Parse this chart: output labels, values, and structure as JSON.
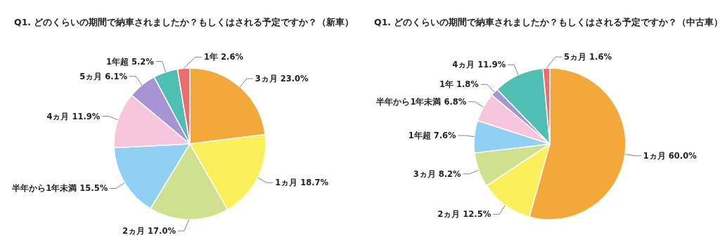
{
  "chart_data": [
    {
      "type": "pie",
      "title": "Q1. どのくらいの期間で納車されましたか？もしくはされる予定ですか？（新車）",
      "categories": [
        "3ヵ月",
        "1ヵ月",
        "2ヵ月",
        "半年から1年未満",
        "4ヵ月",
        "5ヵ月",
        "1年超",
        "1年"
      ],
      "values": [
        23.0,
        18.7,
        17.0,
        15.5,
        11.9,
        6.1,
        5.2,
        2.6
      ],
      "value_labels": [
        "23.0%",
        "18.7%",
        "17.0%",
        "15.5%",
        "11.9%",
        "6.1%",
        "5.2%",
        "2.6%"
      ],
      "colors": [
        "#f3a93a",
        "#fbef5a",
        "#cfe08f",
        "#8fd0f3",
        "#f7c6dc",
        "#a894d4",
        "#4fbfb3",
        "#ec6d6d"
      ]
    },
    {
      "type": "pie",
      "title": "Q1. どのくらいの期間で納車されましたか？もしくはされる予定ですか？（中古車）",
      "categories": [
        "1ヵ月",
        "2ヵ月",
        "3ヵ月",
        "1年超",
        "半年から1年未満",
        "1年",
        "4ヵ月",
        "5ヵ月"
      ],
      "values": [
        60.0,
        12.5,
        8.2,
        7.6,
        6.8,
        1.8,
        11.9,
        1.6
      ],
      "value_labels": [
        "60.0%",
        "12.5%",
        "8.2%",
        "7.6%",
        "6.8%",
        "1.8%",
        "11.9%",
        "1.6%"
      ],
      "colors": [
        "#f3a93a",
        "#fbef5a",
        "#cfe08f",
        "#8fd0f3",
        "#f7c6dc",
        "#a894d4",
        "#4fbfb3",
        "#ec6d6d"
      ]
    }
  ]
}
